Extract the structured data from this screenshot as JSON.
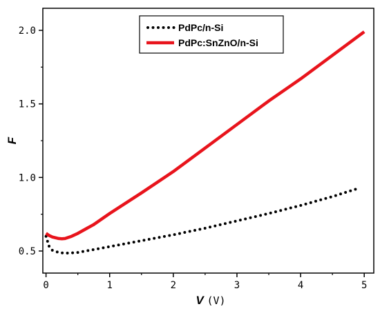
{
  "chart_data": {
    "type": "line",
    "title": "",
    "xlabel": "V",
    "xlabel_unit": "(V)",
    "ylabel": "F",
    "xlim": [
      -0.05,
      5.15
    ],
    "ylim": [
      0.35,
      2.15
    ],
    "x_ticks": [
      0,
      1,
      2,
      3,
      4,
      5
    ],
    "x_tick_labels": [
      "0",
      "1",
      "2",
      "3",
      "4",
      "5"
    ],
    "y_ticks": [
      0.5,
      1.0,
      1.5,
      2.0
    ],
    "y_tick_labels": [
      "0.5",
      "1.0",
      "1.5",
      "2.0"
    ],
    "grid": false,
    "legend_position": "top-center",
    "series": [
      {
        "name": "PdPc/n-Si",
        "style": "dotted",
        "color": "#000000",
        "x": [
          0.0,
          0.05,
          0.1,
          0.2,
          0.3,
          0.4,
          0.5,
          0.75,
          1.0,
          1.5,
          2.0,
          2.5,
          3.0,
          3.5,
          4.0,
          4.5,
          4.9
        ],
        "y": [
          0.6,
          0.53,
          0.505,
          0.49,
          0.485,
          0.487,
          0.49,
          0.51,
          0.53,
          0.57,
          0.61,
          0.655,
          0.705,
          0.755,
          0.81,
          0.87,
          0.925
        ]
      },
      {
        "name": "PdPc:SnZnO/n-Si",
        "style": "solid",
        "color": "#e8141c",
        "x": [
          0.0,
          0.05,
          0.1,
          0.2,
          0.25,
          0.3,
          0.4,
          0.5,
          0.75,
          1.0,
          1.5,
          2.0,
          2.5,
          3.0,
          3.5,
          4.0,
          4.5,
          5.0
        ],
        "y": [
          0.62,
          0.605,
          0.595,
          0.585,
          0.583,
          0.585,
          0.6,
          0.62,
          0.68,
          0.755,
          0.895,
          1.04,
          1.2,
          1.36,
          1.52,
          1.67,
          1.83,
          1.99
        ]
      }
    ]
  }
}
